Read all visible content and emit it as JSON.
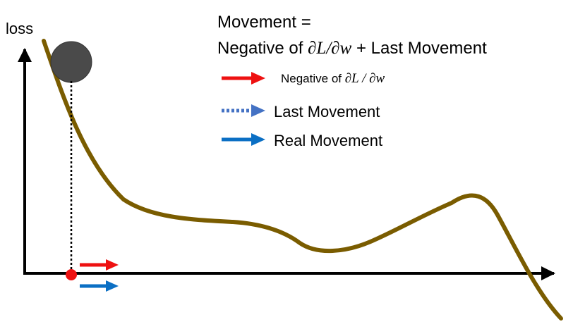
{
  "axis": {
    "y_label": "loss"
  },
  "title": {
    "line1": "Movement =",
    "line2_prefix": "Negative of ",
    "line2_math": "∂L/∂w",
    "line2_suffix": " + Last Movement"
  },
  "legend": {
    "gradient_prefix": "Negative of ",
    "gradient_math": "∂L / ∂w",
    "last_movement": "Last Movement",
    "real_movement": "Real Movement"
  },
  "colors": {
    "curve": "#7a5c00",
    "ball": "#4a4a4a",
    "gradient_arrow": "#ee1111",
    "last_movement_arrow": "#4472c4",
    "real_movement_arrow": "#0b6fc4",
    "point": "#ee1111",
    "axes": "#000000"
  }
}
